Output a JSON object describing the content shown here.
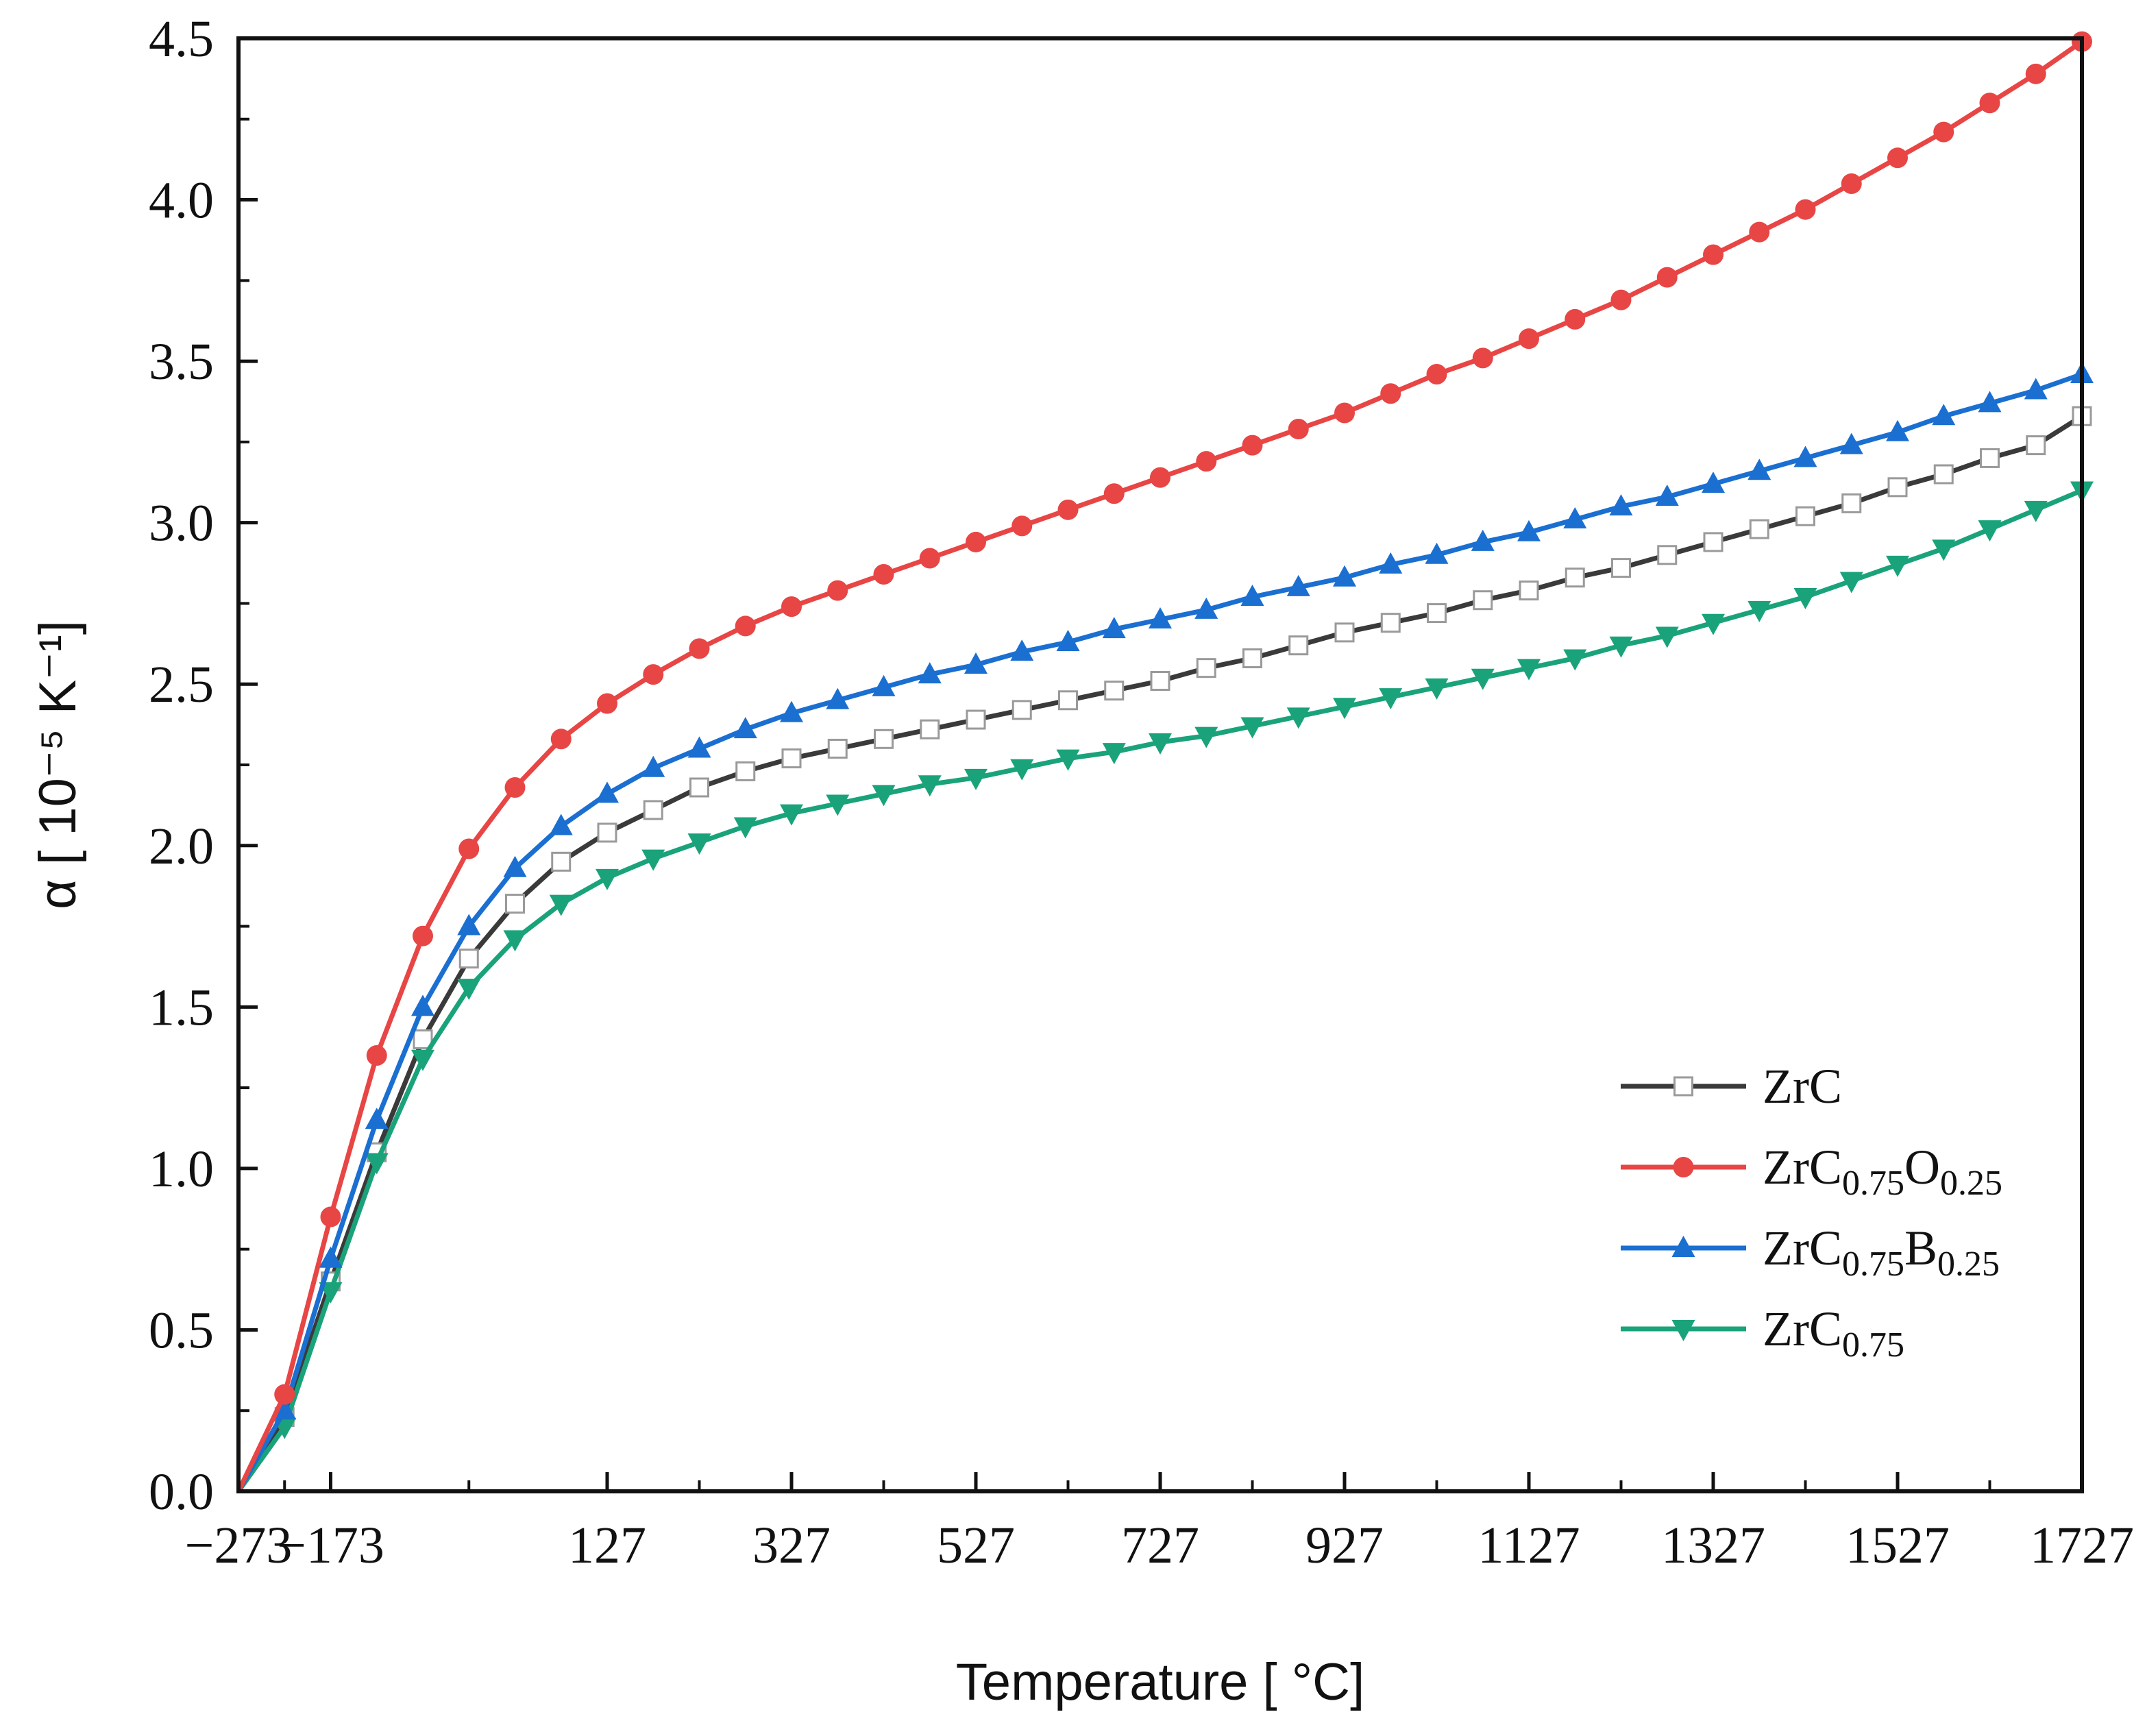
{
  "chart_data": {
    "type": "line",
    "xlabel": "Temperature [ °C]",
    "ylabel": "α [ 10⁻⁵ K⁻¹]",
    "xlim": [
      -273,
      1727
    ],
    "ylim": [
      0.0,
      4.5
    ],
    "x_ticks": [
      -273,
      -173,
      127,
      327,
      527,
      727,
      927,
      1127,
      1327,
      1527,
      1727
    ],
    "x_tick_labels": [
      "−273",
      "−173",
      "127",
      "327",
      "527",
      "727",
      "927",
      "1127",
      "1327",
      "1527",
      "1727"
    ],
    "y_ticks": [
      0.0,
      0.5,
      1.0,
      1.5,
      2.0,
      2.5,
      3.0,
      3.5,
      4.0,
      4.5
    ],
    "y_tick_labels": [
      "0.0",
      "0.5",
      "1.0",
      "1.5",
      "2.0",
      "2.5",
      "3.0",
      "3.5",
      "4.0",
      "4.5"
    ],
    "grid": false,
    "legend_position": "bottom-right",
    "series": [
      {
        "name": "ZrC",
        "label_main": "ZrC",
        "label_parts": [],
        "color": "#555555",
        "line_color": "#3a3a3a",
        "marker": "square-open",
        "points": [
          [
            -273,
            0.0
          ],
          [
            -223,
            0.23
          ],
          [
            -173,
            0.65
          ],
          [
            -123,
            1.05
          ],
          [
            -73,
            1.4
          ],
          [
            -23,
            1.65
          ],
          [
            27,
            1.82
          ],
          [
            77,
            1.95
          ],
          [
            127,
            2.04
          ],
          [
            177,
            2.11
          ],
          [
            227,
            2.18
          ],
          [
            277,
            2.23
          ],
          [
            327,
            2.27
          ],
          [
            377,
            2.3
          ],
          [
            427,
            2.33
          ],
          [
            477,
            2.36
          ],
          [
            527,
            2.39
          ],
          [
            577,
            2.42
          ],
          [
            627,
            2.45
          ],
          [
            677,
            2.48
          ],
          [
            727,
            2.51
          ],
          [
            777,
            2.55
          ],
          [
            827,
            2.58
          ],
          [
            877,
            2.62
          ],
          [
            927,
            2.66
          ],
          [
            977,
            2.69
          ],
          [
            1027,
            2.72
          ],
          [
            1077,
            2.76
          ],
          [
            1127,
            2.79
          ],
          [
            1177,
            2.83
          ],
          [
            1227,
            2.86
          ],
          [
            1277,
            2.9
          ],
          [
            1327,
            2.94
          ],
          [
            1377,
            2.98
          ],
          [
            1427,
            3.02
          ],
          [
            1477,
            3.06
          ],
          [
            1527,
            3.11
          ],
          [
            1577,
            3.15
          ],
          [
            1627,
            3.2
          ],
          [
            1677,
            3.24
          ],
          [
            1727,
            3.33
          ]
        ]
      },
      {
        "name": "ZrC0.75O0.25",
        "label_main": "ZrC",
        "label_parts": [
          {
            "text": "0.75",
            "sub": true
          },
          {
            "text": "O",
            "sub": false
          },
          {
            "text": "0.25",
            "sub": true
          }
        ],
        "color": "#e84545",
        "line_color": "#e84545",
        "marker": "circle",
        "points": [
          [
            -273,
            0.0
          ],
          [
            -223,
            0.3
          ],
          [
            -173,
            0.85
          ],
          [
            -123,
            1.35
          ],
          [
            -73,
            1.72
          ],
          [
            -23,
            1.99
          ],
          [
            27,
            2.18
          ],
          [
            77,
            2.33
          ],
          [
            127,
            2.44
          ],
          [
            177,
            2.53
          ],
          [
            227,
            2.61
          ],
          [
            277,
            2.68
          ],
          [
            327,
            2.74
          ],
          [
            377,
            2.79
          ],
          [
            427,
            2.84
          ],
          [
            477,
            2.89
          ],
          [
            527,
            2.94
          ],
          [
            577,
            2.99
          ],
          [
            627,
            3.04
          ],
          [
            677,
            3.09
          ],
          [
            727,
            3.14
          ],
          [
            777,
            3.19
          ],
          [
            827,
            3.24
          ],
          [
            877,
            3.29
          ],
          [
            927,
            3.34
          ],
          [
            977,
            3.4
          ],
          [
            1027,
            3.46
          ],
          [
            1077,
            3.51
          ],
          [
            1127,
            3.57
          ],
          [
            1177,
            3.63
          ],
          [
            1227,
            3.69
          ],
          [
            1277,
            3.76
          ],
          [
            1327,
            3.83
          ],
          [
            1377,
            3.9
          ],
          [
            1427,
            3.97
          ],
          [
            1477,
            4.05
          ],
          [
            1527,
            4.13
          ],
          [
            1577,
            4.21
          ],
          [
            1627,
            4.3
          ],
          [
            1677,
            4.39
          ],
          [
            1727,
            4.49
          ]
        ]
      },
      {
        "name": "ZrC0.75B0.25",
        "label_main": "ZrC",
        "label_parts": [
          {
            "text": "0.75",
            "sub": true
          },
          {
            "text": "B",
            "sub": false
          },
          {
            "text": "0.25",
            "sub": true
          }
        ],
        "color": "#1a6fd1",
        "line_color": "#1a6fd1",
        "marker": "triangle-up",
        "points": [
          [
            -273,
            0.0
          ],
          [
            -223,
            0.25
          ],
          [
            -173,
            0.72
          ],
          [
            -123,
            1.15
          ],
          [
            -73,
            1.5
          ],
          [
            -23,
            1.75
          ],
          [
            27,
            1.93
          ],
          [
            77,
            2.06
          ],
          [
            127,
            2.16
          ],
          [
            177,
            2.24
          ],
          [
            227,
            2.3
          ],
          [
            277,
            2.36
          ],
          [
            327,
            2.41
          ],
          [
            377,
            2.45
          ],
          [
            427,
            2.49
          ],
          [
            477,
            2.53
          ],
          [
            527,
            2.56
          ],
          [
            577,
            2.6
          ],
          [
            627,
            2.63
          ],
          [
            677,
            2.67
          ],
          [
            727,
            2.7
          ],
          [
            777,
            2.73
          ],
          [
            827,
            2.77
          ],
          [
            877,
            2.8
          ],
          [
            927,
            2.83
          ],
          [
            977,
            2.87
          ],
          [
            1027,
            2.9
          ],
          [
            1077,
            2.94
          ],
          [
            1127,
            2.97
          ],
          [
            1177,
            3.01
          ],
          [
            1227,
            3.05
          ],
          [
            1277,
            3.08
          ],
          [
            1327,
            3.12
          ],
          [
            1377,
            3.16
          ],
          [
            1427,
            3.2
          ],
          [
            1477,
            3.24
          ],
          [
            1527,
            3.28
          ],
          [
            1577,
            3.33
          ],
          [
            1627,
            3.37
          ],
          [
            1677,
            3.41
          ],
          [
            1727,
            3.46
          ]
        ]
      },
      {
        "name": "ZrC0.75",
        "label_main": "ZrC",
        "label_parts": [
          {
            "text": "0.75",
            "sub": true
          }
        ],
        "color": "#1aa37a",
        "line_color": "#1aa37a",
        "marker": "triangle-down",
        "points": [
          [
            -273,
            0.0
          ],
          [
            -223,
            0.2
          ],
          [
            -173,
            0.62
          ],
          [
            -123,
            1.02
          ],
          [
            -73,
            1.34
          ],
          [
            -23,
            1.56
          ],
          [
            27,
            1.71
          ],
          [
            77,
            1.82
          ],
          [
            127,
            1.9
          ],
          [
            177,
            1.96
          ],
          [
            227,
            2.01
          ],
          [
            277,
            2.06
          ],
          [
            327,
            2.1
          ],
          [
            377,
            2.13
          ],
          [
            427,
            2.16
          ],
          [
            477,
            2.19
          ],
          [
            527,
            2.21
          ],
          [
            577,
            2.24
          ],
          [
            627,
            2.27
          ],
          [
            677,
            2.29
          ],
          [
            727,
            2.32
          ],
          [
            777,
            2.34
          ],
          [
            827,
            2.37
          ],
          [
            877,
            2.4
          ],
          [
            927,
            2.43
          ],
          [
            977,
            2.46
          ],
          [
            1027,
            2.49
          ],
          [
            1077,
            2.52
          ],
          [
            1127,
            2.55
          ],
          [
            1177,
            2.58
          ],
          [
            1227,
            2.62
          ],
          [
            1277,
            2.65
          ],
          [
            1327,
            2.69
          ],
          [
            1377,
            2.73
          ],
          [
            1427,
            2.77
          ],
          [
            1477,
            2.82
          ],
          [
            1527,
            2.87
          ],
          [
            1577,
            2.92
          ],
          [
            1627,
            2.98
          ],
          [
            1677,
            3.04
          ],
          [
            1727,
            3.1
          ]
        ]
      }
    ]
  }
}
